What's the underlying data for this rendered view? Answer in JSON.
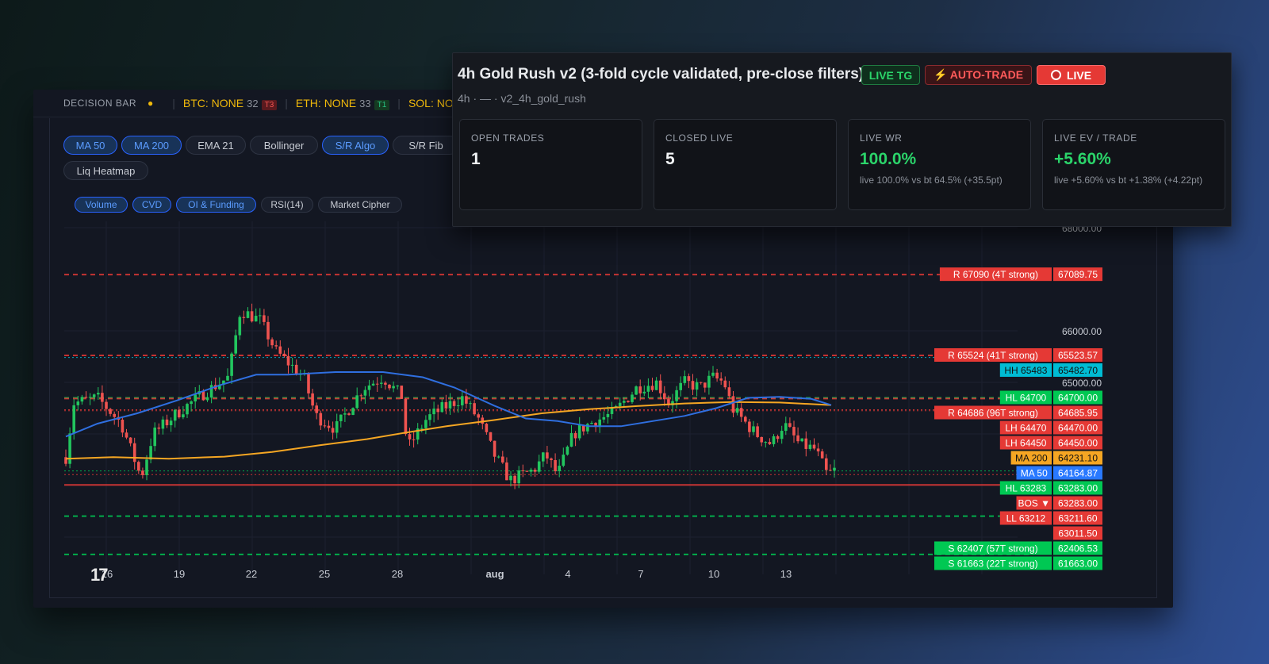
{
  "decision_bar": {
    "label": "DECISION BAR",
    "dot": "●",
    "items": [
      {
        "symbol": "BTC: NONE",
        "count": "32",
        "tag": "T3"
      },
      {
        "symbol": "ETH: NONE",
        "count": "33",
        "tag": "T1"
      },
      {
        "symbol": "SOL: NO"
      }
    ]
  },
  "toolbar": {
    "overlays": [
      {
        "label": "MA 50",
        "active": true
      },
      {
        "label": "MA 200",
        "active": true
      },
      {
        "label": "EMA 21",
        "active": false
      },
      {
        "label": "Bollinger",
        "active": false
      },
      {
        "label": "S/R Algo",
        "active": true
      },
      {
        "label": "S/R Fib",
        "active": false
      },
      {
        "label": "Liq Heatmap",
        "active": false
      }
    ],
    "panes": [
      {
        "label": "Volume",
        "active": true
      },
      {
        "label": "CVD",
        "active": true
      },
      {
        "label": "OI & Funding",
        "active": true
      },
      {
        "label": "RSI(14)",
        "active": false
      },
      {
        "label": "Market Cipher",
        "active": false
      }
    ]
  },
  "chart_data": {
    "type": "candlestick",
    "x_tick_labels": [
      "16",
      "19",
      "22",
      "25",
      "28",
      "aug",
      "4",
      "7",
      "10",
      "13"
    ],
    "y_tick_labels": [
      "68000.00",
      "66000.00",
      "65000.00"
    ],
    "levels": [
      {
        "label": "R 67090 (4T strong)",
        "price": "67089.75",
        "value": 67089.75,
        "color": "#e53935",
        "style": "dashed"
      },
      {
        "label": "R 65524 (41T strong)",
        "price": "65523.57",
        "value": 65523.57,
        "color": "#e53935",
        "style": "dashed"
      },
      {
        "label": "HH 65483",
        "price": "65482.70",
        "value": 65482.7,
        "color": "#00bcd4",
        "style": "dotted"
      },
      {
        "label": "HL 64700",
        "price": "64700.00",
        "value": 64700.0,
        "color": "#00c853",
        "style": "dashed"
      },
      {
        "label": "R 64686 (96T strong)",
        "price": "64685.95",
        "value": 64685.95,
        "color": "#e53935",
        "style": "dashed"
      },
      {
        "label": "LH 64470",
        "price": "64470.00",
        "value": 64470.0,
        "color": "#e53935",
        "style": "dotted"
      },
      {
        "label": "LH 64450",
        "price": "64450.00",
        "value": 64450.0,
        "color": "#e53935",
        "style": "dotted"
      },
      {
        "label": "MA 200",
        "price": "64231.10",
        "value": 64231.1,
        "color": "#f5a623",
        "style": "none"
      },
      {
        "label": "MA 50",
        "price": "64164.87",
        "value": 64164.87,
        "color": "#2979ff",
        "style": "none"
      },
      {
        "label": "HL 63283",
        "price": "63283.00",
        "value": 63283.0,
        "color": "#00c853",
        "style": "dotted"
      },
      {
        "label": "BOS ▼",
        "price": "63283.00",
        "value": 63283.0,
        "color": "#e53935",
        "style": "none"
      },
      {
        "label": "LL 63212",
        "price": "63211.60",
        "value": 63211.6,
        "color": "#e53935",
        "style": "dotted"
      },
      {
        "label": "",
        "price": "63011.50",
        "value": 63011.5,
        "color": "#e53935",
        "style": "solid"
      },
      {
        "label": "S 62407 (57T strong)",
        "price": "62406.53",
        "value": 62406.53,
        "color": "#00c853",
        "style": "dashed"
      },
      {
        "label": "S 61663 (22T strong)",
        "price": "61663.00",
        "value": 61663.0,
        "color": "#00c853",
        "style": "dashed"
      }
    ]
  },
  "strategy": {
    "title": "4h Gold Rush v2 (3-fold cycle validated, pre-close filters)",
    "badge_tg": "LIVE TG",
    "badge_auto": "⚡ AUTO-TRADE",
    "badge_live": "LIVE",
    "subtitle": "4h · — · v2_4h_gold_rush",
    "cards": [
      {
        "label": "OPEN TRADES",
        "value": "1",
        "note": ""
      },
      {
        "label": "CLOSED LIVE",
        "value": "5",
        "note": ""
      },
      {
        "label": "LIVE WR",
        "value": "100.0%",
        "note": "live 100.0% vs bt 64.5% (+35.5pt)"
      },
      {
        "label": "LIVE EV / TRADE",
        "value": "+5.60%",
        "note": "live +5.60% vs bt +1.38% (+4.22pt)"
      }
    ],
    "colors": {
      "green": "#2bd46a",
      "red": "#e53935"
    }
  }
}
